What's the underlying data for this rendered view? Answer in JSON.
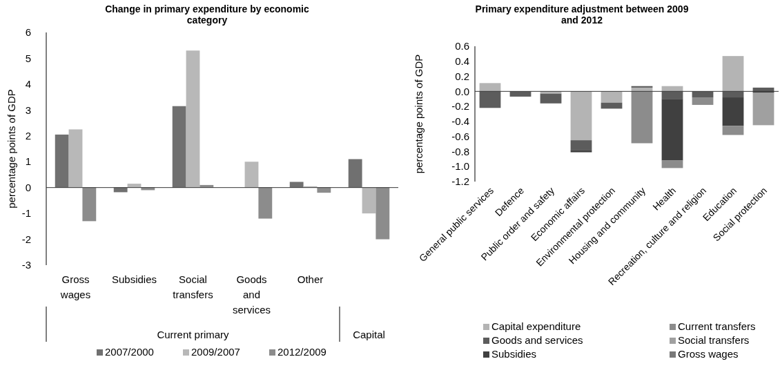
{
  "chart_data": [
    {
      "type": "bar",
      "title": "Change in primary expenditure by economic category",
      "ylabel": "percentage points of GDP",
      "categories": [
        "Gross wages",
        "Subsidies",
        "Social transfers",
        "Goods and services",
        "Other",
        null
      ],
      "annotations": [
        "Current primary",
        "Capital"
      ],
      "series": [
        {
          "name": "2007/2000",
          "color": "#707070",
          "values": [
            2.05,
            -0.18,
            3.15,
            null,
            0.22,
            1.1
          ]
        },
        {
          "name": "2009/2007",
          "color": "#b8b8b8",
          "values": [
            2.25,
            0.15,
            5.3,
            1.0,
            0.05,
            -1.0
          ]
        },
        {
          "name": "2012/2009",
          "color": "#8c8c8c",
          "values": [
            -1.3,
            -0.1,
            0.1,
            -1.2,
            -0.2,
            -2.0
          ]
        }
      ],
      "ylim": [
        -3,
        6
      ],
      "yticks": [
        -3,
        -2,
        -1,
        0,
        1,
        2,
        3,
        4,
        5,
        6
      ],
      "legend": "bottom"
    },
    {
      "type": "bar",
      "stacked": true,
      "title": "Primary expenditure adjustment between 2009 and 2012",
      "ylabel": "percentage points of GDP",
      "categories": [
        "General public services",
        "Defence",
        "Public order and safety",
        "Economic affairs",
        "Environmental protection",
        "Housing and community",
        "Health",
        "Recreation, culture and religion",
        "Education",
        "Social protection"
      ],
      "series": [
        {
          "name": "Capital expenditure",
          "color": "#b4b4b4",
          "values": [
            0.11,
            null,
            -0.03,
            -0.65,
            -0.15,
            0.05,
            0.07,
            null,
            0.47,
            null
          ]
        },
        {
          "name": "Goods and services",
          "color": "#5c5c5c",
          "values": [
            -0.22,
            -0.07,
            -0.13,
            -0.13,
            -0.08,
            0.02,
            -0.1,
            -0.08,
            -0.08,
            0.05
          ]
        },
        {
          "name": "Subsidies",
          "color": "#404040",
          "values": [
            null,
            null,
            null,
            -0.03,
            null,
            null,
            -0.82,
            null,
            -0.38,
            -0.02
          ]
        },
        {
          "name": "Current transfers",
          "color": "#8c8c8c",
          "values": [
            null,
            null,
            null,
            null,
            null,
            -0.69,
            -0.1,
            -0.1,
            -0.12,
            null
          ]
        },
        {
          "name": "Social transfers",
          "color": "#a0a0a0",
          "values": [
            null,
            null,
            null,
            null,
            null,
            null,
            null,
            null,
            null,
            -0.43
          ]
        },
        {
          "name": "Gross wages",
          "color": "#787878",
          "values": [
            null,
            null,
            null,
            null,
            null,
            null,
            null,
            null,
            null,
            null
          ]
        }
      ],
      "ylim": [
        -1.2,
        0.6
      ],
      "yticks": [
        {
          "value": -1.2,
          "label": "-1.2"
        },
        {
          "value": -1,
          "label": "-1.0"
        },
        {
          "value": -0.8,
          "label": "-0.8"
        },
        {
          "value": -0.6,
          "label": "-0.6"
        },
        {
          "value": -0.4,
          "label": "-0.4"
        },
        {
          "value": -0.2,
          "label": "-0.2"
        },
        {
          "value": 0,
          "label": "0.0"
        },
        {
          "value": 0.2,
          "label": "0.2"
        },
        {
          "value": 0.4,
          "label": "0.4"
        },
        {
          "value": 0.6,
          "label": "0.6"
        }
      ],
      "legend": "bottom"
    }
  ]
}
